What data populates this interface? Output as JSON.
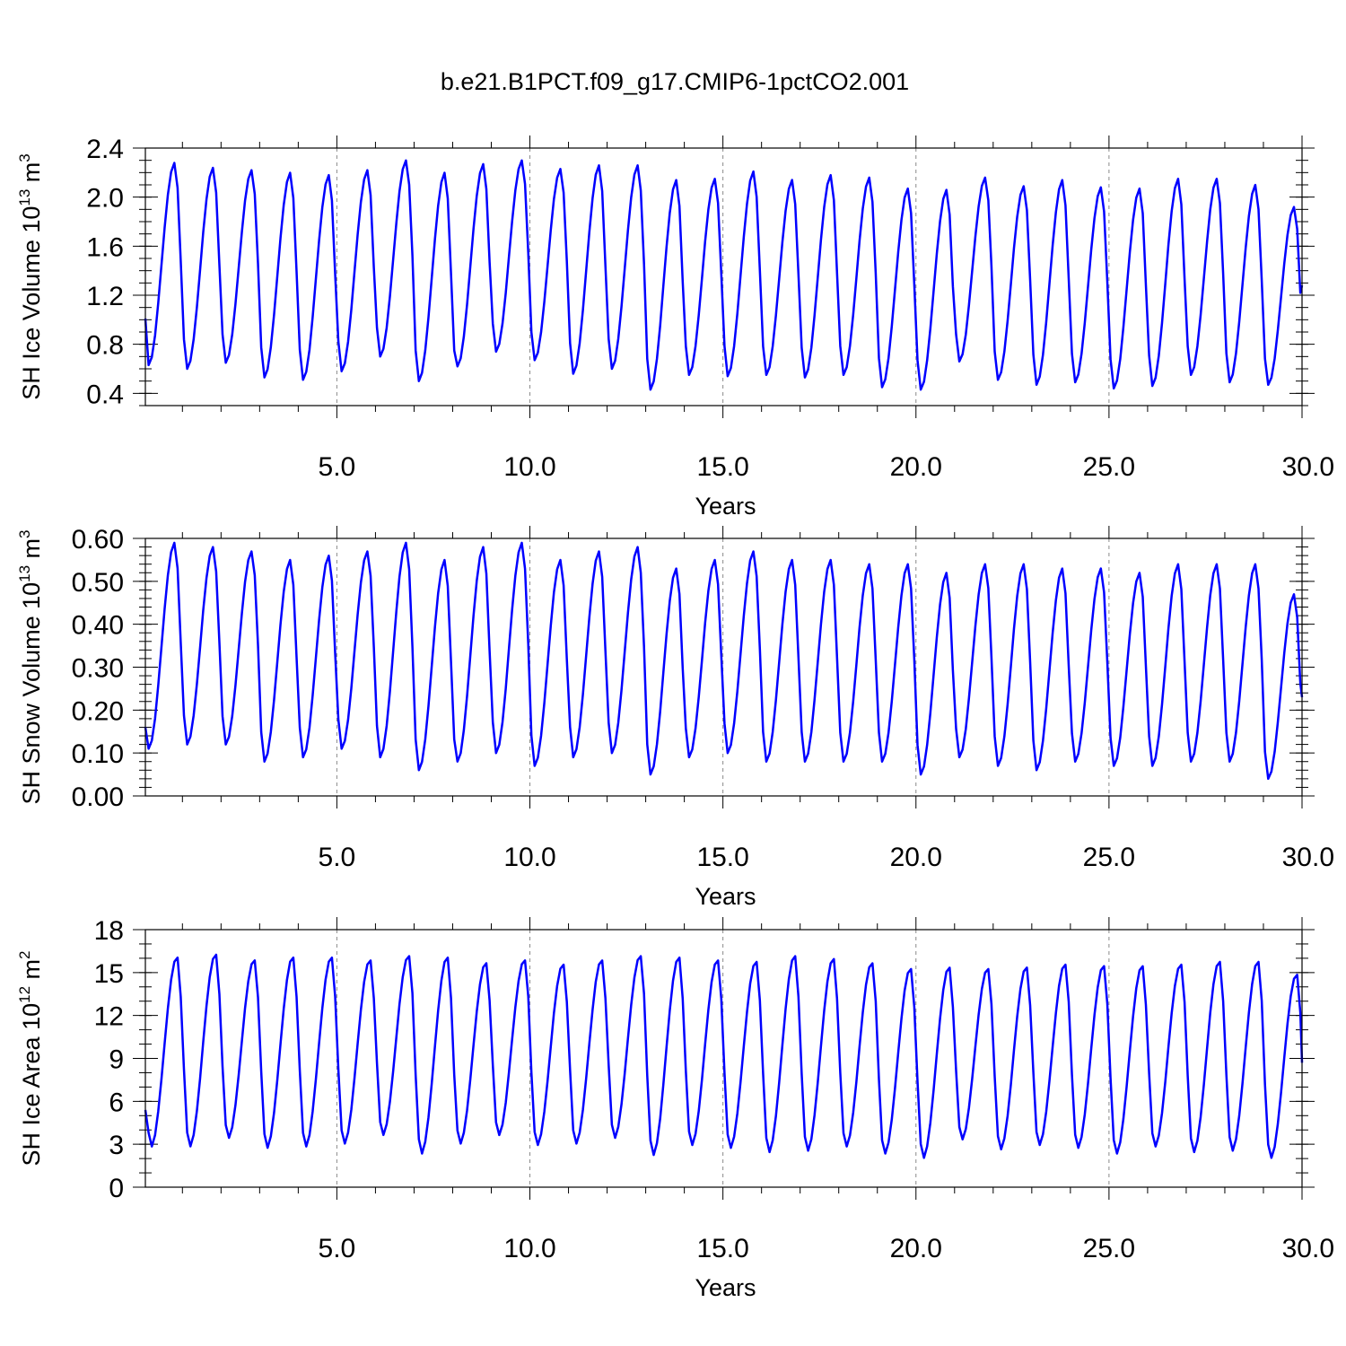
{
  "figure": {
    "title": "b.e21.B1PCT.f09_g17.CMIP6-1pctCO2.001",
    "line_color": "#0000ff",
    "gridline_color": "#8a8a8a"
  },
  "chart_data": [
    {
      "type": "line",
      "xlabel": "Years",
      "ylabel": {
        "text": "SH Ice Volume 10",
        "exp": "13",
        "unit": " m",
        "unit_exp": "3"
      },
      "xlim": [
        0.04,
        30.0
      ],
      "xticks": [
        5,
        10,
        15,
        20,
        25,
        30
      ],
      "xtick_labels": [
        "5.0",
        "10.0",
        "15.0",
        "20.0",
        "25.0",
        "30.0"
      ],
      "ylim": [
        0.3,
        2.4
      ],
      "yticks": [
        0.4,
        0.8,
        1.2,
        1.6,
        2.0,
        2.4
      ],
      "ytick_labels": [
        "0.4",
        "0.8",
        "1.2",
        "1.6",
        "2.0",
        "2.4"
      ],
      "yminor_step": 0.1,
      "vertical_gridlines": [
        5,
        10,
        15,
        20,
        25
      ],
      "series": [
        {
          "phase": 0.0,
          "start_value": 1.01,
          "end_value": 1.28,
          "maxima": [
            2.28,
            2.24,
            2.22,
            2.2,
            2.18,
            2.22,
            2.3,
            2.2,
            2.27,
            2.3,
            2.23,
            2.26,
            2.26,
            2.14,
            2.15,
            2.21,
            2.14,
            2.18,
            2.16,
            2.07,
            2.06,
            2.16,
            2.09,
            2.14,
            2.08,
            2.07,
            2.15,
            2.15,
            2.1,
            1.92
          ],
          "minima": [
            0.63,
            0.6,
            0.65,
            0.53,
            0.51,
            0.58,
            0.7,
            0.5,
            0.62,
            0.74,
            0.67,
            0.56,
            0.6,
            0.43,
            0.55,
            0.54,
            0.55,
            0.53,
            0.55,
            0.45,
            0.43,
            0.66,
            0.51,
            0.47,
            0.49,
            0.44,
            0.46,
            0.55,
            0.49,
            0.47
          ]
        }
      ]
    },
    {
      "type": "line",
      "xlabel": "Years",
      "ylabel": {
        "text": "SH Snow Volume 10",
        "exp": "13",
        "unit": " m",
        "unit_exp": "3"
      },
      "xlim": [
        0.04,
        30.0
      ],
      "xticks": [
        5,
        10,
        15,
        20,
        25,
        30
      ],
      "xtick_labels": [
        "5.0",
        "10.0",
        "15.0",
        "20.0",
        "25.0",
        "30.0"
      ],
      "ylim": [
        0.0,
        0.6
      ],
      "yticks": [
        0.0,
        0.1,
        0.2,
        0.3,
        0.4,
        0.5,
        0.6
      ],
      "ytick_labels": [
        "0.00",
        "0.10",
        "0.20",
        "0.30",
        "0.40",
        "0.50",
        "0.60"
      ],
      "yminor_step": 0.02,
      "vertical_gridlines": [
        5,
        10,
        15,
        20,
        25
      ],
      "series": [
        {
          "phase": 0.0,
          "start_value": 0.16,
          "end_value": 0.23,
          "maxima": [
            0.59,
            0.58,
            0.57,
            0.55,
            0.56,
            0.57,
            0.59,
            0.55,
            0.58,
            0.59,
            0.55,
            0.57,
            0.58,
            0.53,
            0.55,
            0.57,
            0.55,
            0.55,
            0.54,
            0.54,
            0.52,
            0.54,
            0.54,
            0.53,
            0.53,
            0.52,
            0.54,
            0.54,
            0.54,
            0.47
          ],
          "minima": [
            0.11,
            0.12,
            0.12,
            0.08,
            0.09,
            0.11,
            0.09,
            0.06,
            0.08,
            0.1,
            0.07,
            0.09,
            0.1,
            0.05,
            0.09,
            0.1,
            0.08,
            0.08,
            0.08,
            0.08,
            0.05,
            0.09,
            0.07,
            0.06,
            0.08,
            0.07,
            0.07,
            0.08,
            0.08,
            0.04
          ]
        }
      ]
    },
    {
      "type": "line",
      "xlabel": "Years",
      "ylabel": {
        "text": "SH Ice Area 10",
        "exp": "12",
        "unit": " m",
        "unit_exp": "2"
      },
      "xlim": [
        0.04,
        30.0
      ],
      "xticks": [
        5,
        10,
        15,
        20,
        25,
        30
      ],
      "xtick_labels": [
        "5.0",
        "10.0",
        "15.0",
        "20.0",
        "25.0",
        "30.0"
      ],
      "ylim": [
        0,
        18
      ],
      "yticks": [
        0,
        3,
        6,
        9,
        12,
        15,
        18
      ],
      "ytick_labels": [
        "0",
        "3",
        "6",
        "9",
        "12",
        "15",
        "18"
      ],
      "yminor_step": 1,
      "vertical_gridlines": [
        5,
        10,
        15,
        20,
        25
      ],
      "series": [
        {
          "phase": -0.06,
          "start_value": 5.4,
          "end_value": 8.7,
          "maxima": [
            16.1,
            16.3,
            15.9,
            16.1,
            16.1,
            15.9,
            16.2,
            16.1,
            15.7,
            15.9,
            15.6,
            15.9,
            16.2,
            16.1,
            15.9,
            15.8,
            16.2,
            16.0,
            15.7,
            15.3,
            15.4,
            15.3,
            15.4,
            15.6,
            15.5,
            15.5,
            15.6,
            15.8,
            15.8,
            14.9
          ],
          "minima": [
            2.8,
            2.8,
            3.4,
            2.7,
            2.8,
            3.0,
            3.6,
            2.3,
            3.0,
            3.6,
            2.9,
            3.0,
            3.4,
            2.2,
            2.9,
            2.7,
            2.4,
            2.5,
            2.8,
            2.3,
            2.0,
            3.3,
            2.6,
            2.9,
            2.7,
            2.3,
            2.8,
            2.4,
            2.5,
            2.0
          ]
        }
      ]
    }
  ]
}
